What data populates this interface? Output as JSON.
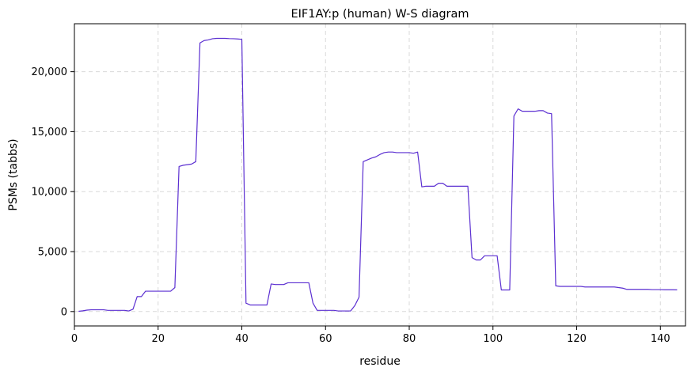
{
  "chart_data": {
    "type": "line",
    "title": "EIF1AY:p (human) W-S diagram",
    "xlabel": "residue",
    "ylabel": "PSMs (tabbs)",
    "xlim": [
      0,
      146
    ],
    "ylim": [
      -1200,
      24000
    ],
    "xticks": [
      0,
      20,
      40,
      60,
      80,
      100,
      120,
      140
    ],
    "yticks": [
      0,
      5000,
      10000,
      15000,
      20000
    ],
    "xtick_labels": [
      "0",
      "20",
      "40",
      "60",
      "80",
      "100",
      "120",
      "140"
    ],
    "ytick_labels": [
      "0",
      "5,000",
      "10,000",
      "15,000",
      "20,000"
    ],
    "grid": true,
    "line_color": "#5b2fd1",
    "series": [
      {
        "x": [
          1,
          2,
          3,
          4,
          5,
          6,
          7,
          8,
          9,
          10,
          11,
          12,
          13,
          14,
          15,
          16,
          17,
          18,
          19,
          20,
          21,
          22,
          23,
          24,
          25,
          26,
          27,
          28,
          29,
          30,
          31,
          32,
          33,
          34,
          35,
          36,
          37,
          38,
          39,
          40,
          41,
          42,
          43,
          44,
          45,
          46,
          47,
          48,
          49,
          50,
          51,
          52,
          53,
          54,
          55,
          56,
          57,
          58,
          59,
          60,
          61,
          62,
          63,
          64,
          65,
          66,
          67,
          68,
          69,
          70,
          71,
          72,
          73,
          74,
          75,
          76,
          77,
          78,
          79,
          80,
          81,
          82,
          83,
          84,
          85,
          86,
          87,
          88,
          89,
          90,
          91,
          92,
          93,
          94,
          95,
          96,
          97,
          98,
          99,
          100,
          101,
          102,
          103,
          104,
          105,
          106,
          107,
          108,
          109,
          110,
          111,
          112,
          113,
          114,
          115,
          116,
          117,
          118,
          119,
          120,
          121,
          122,
          123,
          124,
          125,
          126,
          127,
          128,
          129,
          130,
          131,
          132,
          133,
          134,
          135,
          136,
          137,
          138,
          139,
          140,
          141,
          142,
          143,
          144
        ],
        "y": [
          20,
          60,
          120,
          150,
          150,
          150,
          150,
          100,
          100,
          100,
          100,
          100,
          50,
          200,
          1250,
          1250,
          1700,
          1700,
          1700,
          1700,
          1700,
          1700,
          1700,
          2000,
          12100,
          12200,
          12250,
          12300,
          12500,
          22400,
          22600,
          22650,
          22750,
          22780,
          22780,
          22780,
          22760,
          22750,
          22730,
          22700,
          700,
          550,
          550,
          550,
          550,
          550,
          2300,
          2250,
          2250,
          2250,
          2400,
          2400,
          2400,
          2400,
          2400,
          2400,
          700,
          100,
          100,
          100,
          100,
          100,
          50,
          50,
          50,
          50,
          500,
          1200,
          12500,
          12650,
          12800,
          12900,
          13100,
          13250,
          13300,
          13300,
          13250,
          13250,
          13250,
          13250,
          13200,
          13300,
          10400,
          10450,
          10450,
          10450,
          10700,
          10700,
          10450,
          10450,
          10450,
          10450,
          10450,
          10450,
          4500,
          4300,
          4300,
          4650,
          4650,
          4650,
          4650,
          1800,
          1800,
          1800,
          16300,
          16900,
          16700,
          16700,
          16700,
          16700,
          16750,
          16750,
          16550,
          16500,
          2150,
          2100,
          2100,
          2100,
          2100,
          2100,
          2100,
          2050,
          2050,
          2050,
          2050,
          2050,
          2050,
          2050,
          2050,
          2000,
          1950,
          1850,
          1850,
          1850,
          1850,
          1850,
          1850,
          1830,
          1830,
          1830,
          1820,
          1820,
          1820,
          1810
        ]
      }
    ]
  }
}
